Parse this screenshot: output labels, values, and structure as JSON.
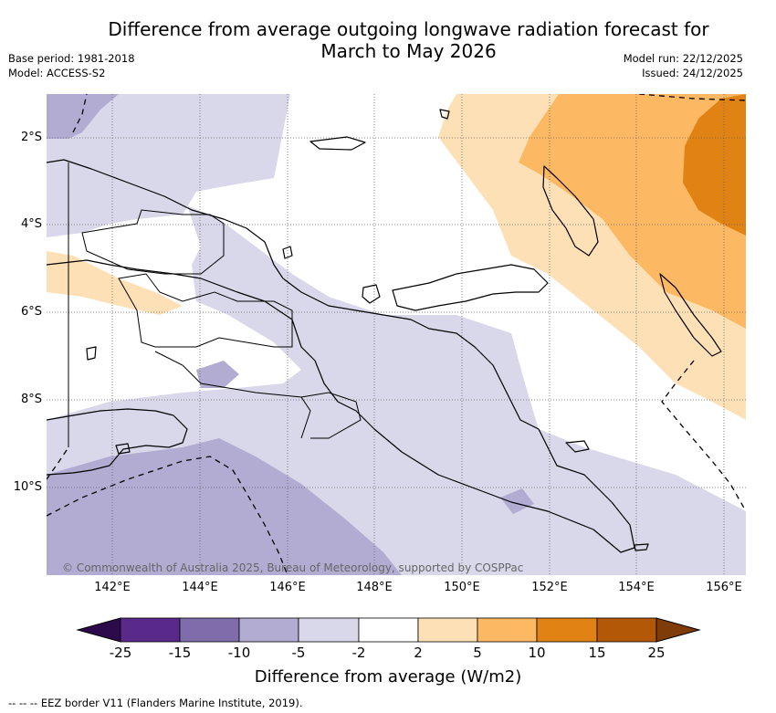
{
  "header": {
    "title_line1": "Difference from average outgoing longwave radiation forecast for",
    "title_line2": "March to May 2026",
    "base_period": "Base period: 1981-2018",
    "model": "Model: ACCESS-S2",
    "model_run": "Model run: 22/12/2025",
    "issued": "Issued: 24/12/2025"
  },
  "map": {
    "lat_labels": [
      "2°S",
      "4°S",
      "6°S",
      "8°S",
      "10°S"
    ],
    "lon_labels": [
      "142°E",
      "144°E",
      "146°E",
      "148°E",
      "150°E",
      "152°E",
      "154°E",
      "156°E"
    ],
    "copyright": "© Commonwealth of Australia 2025, Bureau of Meteorology, supported by COSPPac"
  },
  "legend": {
    "tick_labels": [
      "-25",
      "-15",
      "-10",
      "-5",
      "-2",
      "2",
      "5",
      "10",
      "15",
      "25"
    ],
    "bins": [
      {
        "range": "< -25",
        "color": "#2d0a4b"
      },
      {
        "range": "-25 to -15",
        "color": "#5a2a8a"
      },
      {
        "range": "-15 to -10",
        "color": "#7e6daa"
      },
      {
        "range": "-10 to -5",
        "color": "#b2abd2"
      },
      {
        "range": "-5 to -2",
        "color": "#d8d8ea"
      },
      {
        "range": "-2 to 2",
        "color": "#ffffff"
      },
      {
        "range": "2 to 5",
        "color": "#fee0b6"
      },
      {
        "range": "5 to 10",
        "color": "#fdb863"
      },
      {
        "range": "10 to 15",
        "color": "#e08214"
      },
      {
        "range": "15 to 25",
        "color": "#b35806"
      },
      {
        "range": "> 25",
        "color": "#7f3b08"
      }
    ],
    "label": "Difference from average (W/m2)"
  },
  "footnote": "--  --  -- EEZ border V11 (Flanders Marine Institute, 2019)."
}
